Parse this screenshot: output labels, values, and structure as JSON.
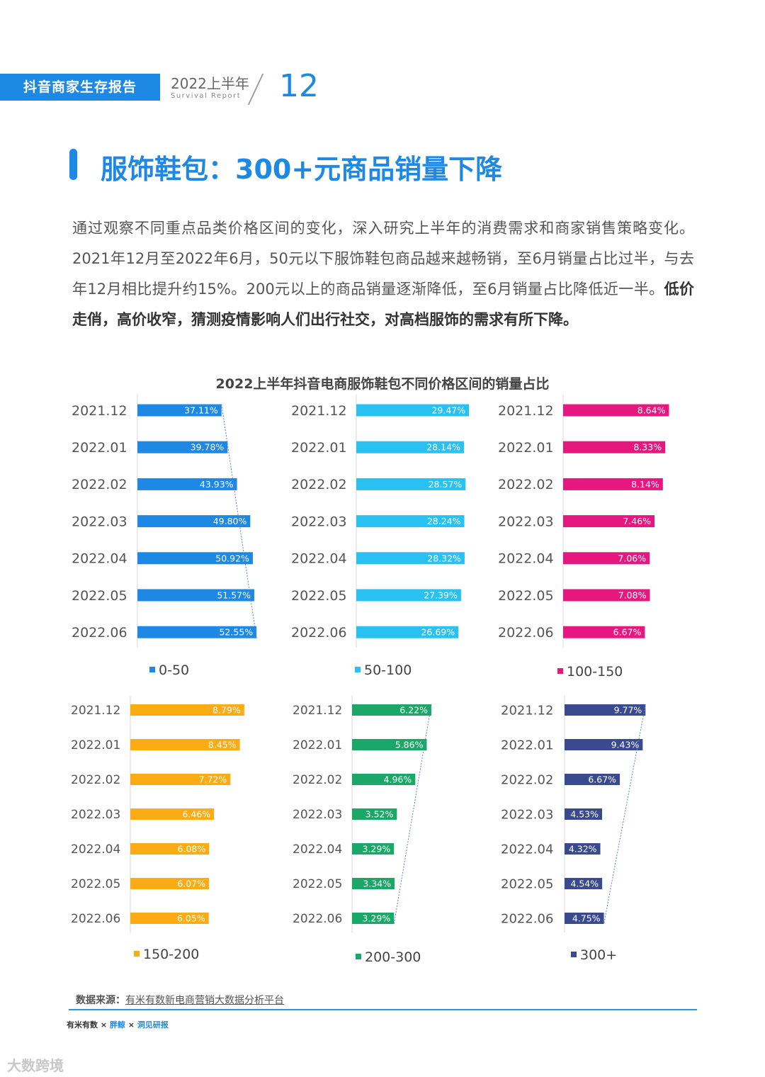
{
  "header": {
    "tag": "抖音商家生存报告",
    "year": "2022上半年",
    "subtitle": "Survival Report",
    "page": "12"
  },
  "title": "服饰鞋包：300+元商品销量下降",
  "paragraph": {
    "normal": "通过观察不同重点品类价格区间的变化，深入研究上半年的消费需求和商家销售策略变化。2021年12月至2022年6月，50元以下服饰鞋包商品越来越畅销，至6月销量占比过半，与去年12月相比提升约15%。200元以上的商品销量逐渐降低，至6月销量占比降低近一半。",
    "bold": "低价走俏，高价收窄，猜测疫情影响人们出行社交，对高档服饰的需求有所下降。"
  },
  "chart_data": {
    "type": "bar",
    "orientation": "horizontal",
    "title": "2022上半年抖音电商服饰鞋包不同价格区间的销量占比",
    "categories": [
      "2021.12",
      "2022.01",
      "2022.02",
      "2022.03",
      "2022.04",
      "2022.05",
      "2022.06"
    ],
    "unit": "%",
    "series": [
      {
        "name": "0-50",
        "color": "#1e88e5",
        "values": [
          37.11,
          39.78,
          43.93,
          49.8,
          50.92,
          51.57,
          52.55
        ],
        "labels": [
          "37.11%",
          "39.78%",
          "43.93%",
          "49.80%",
          "50.92%",
          "51.57%",
          "52.55%"
        ]
      },
      {
        "name": "50-100",
        "color": "#29c0f2",
        "values": [
          29.47,
          28.14,
          28.57,
          28.24,
          28.32,
          27.39,
          26.69
        ],
        "labels": [
          "29.47%",
          "28.14%",
          "28.57%",
          "28.24%",
          "28.32%",
          "27.39%",
          "26.69%"
        ]
      },
      {
        "name": "100-150",
        "color": "#e6177f",
        "values": [
          8.64,
          8.33,
          8.14,
          7.46,
          7.06,
          7.08,
          6.67
        ],
        "labels": [
          "8.64%",
          "8.33%",
          "8.14%",
          "7.46%",
          "7.06%",
          "7.08%",
          "6.67%"
        ]
      },
      {
        "name": "150-200",
        "color": "#fbab13",
        "values": [
          8.79,
          8.45,
          7.72,
          6.46,
          6.08,
          6.07,
          6.05
        ],
        "labels": [
          "8.79%",
          "8.45%",
          "7.72%",
          "6.46%",
          "6.08%",
          "6.07%",
          "6.05%"
        ]
      },
      {
        "name": "200-300",
        "color": "#1ba768",
        "values": [
          6.22,
          5.86,
          4.96,
          3.52,
          3.29,
          3.34,
          3.29
        ],
        "labels": [
          "6.22%",
          "5.86%",
          "4.96%",
          "3.52%",
          "3.29%",
          "3.34%",
          "3.29%"
        ]
      },
      {
        "name": "300+",
        "color": "#3a4a8e",
        "values": [
          9.77,
          9.43,
          6.67,
          4.53,
          4.32,
          4.54,
          4.75
        ],
        "labels": [
          "9.77%",
          "9.43%",
          "6.67%",
          "4.53%",
          "4.32%",
          "4.54%",
          "4.75%"
        ]
      }
    ],
    "legend_position": "bottom",
    "trend_line": true
  },
  "source": {
    "label": "数据来源：",
    "value": "有米有数新电商营销大数据分析平台"
  },
  "logos": [
    "有米有数",
    "×",
    "胖鲸",
    "×",
    "洞见研报"
  ],
  "watermark": "大数跨境"
}
